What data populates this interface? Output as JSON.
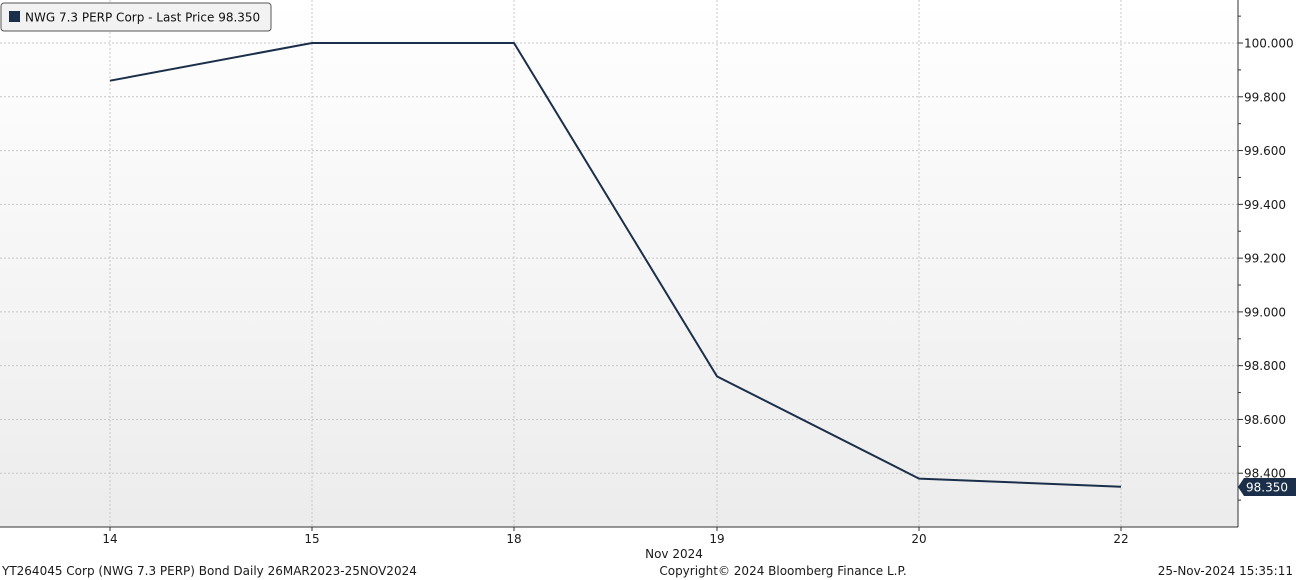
{
  "legend": {
    "label": "NWG 7.3 PERP Corp - Last Price 98.350"
  },
  "footer": {
    "left": "YT264045 Corp (NWG 7.3 PERP) Bond  Daily 26MAR2023-25NOV2024",
    "center": "Copyright© 2024 Bloomberg Finance L.P.",
    "right": "25-Nov-2024 15:35:11"
  },
  "x_axis_group_label": "Nov 2024",
  "last_value_tag": "98.350",
  "colors": {
    "line": "#1b2f4a",
    "tag_bg": "#1b2f4a",
    "grid": "#c8c8c8",
    "axis": "#333333"
  },
  "chart_data": {
    "type": "line",
    "title": "",
    "xlabel": "Nov 2024",
    "ylabel": "",
    "categories": [
      "14",
      "15",
      "18",
      "19",
      "20",
      "22"
    ],
    "series": [
      {
        "name": "NWG 7.3 PERP Corp - Last Price 98.350",
        "values": [
          99.86,
          100.0,
          100.0,
          98.76,
          98.38,
          98.35
        ]
      }
    ],
    "ylim": [
      98.2,
      100.16
    ],
    "yticks": [
      "100.000",
      "99.800",
      "99.600",
      "99.400",
      "99.200",
      "99.000",
      "98.800",
      "98.600",
      "98.400"
    ],
    "grid": true,
    "legend_position": "top-left",
    "y_axis_side": "right"
  }
}
